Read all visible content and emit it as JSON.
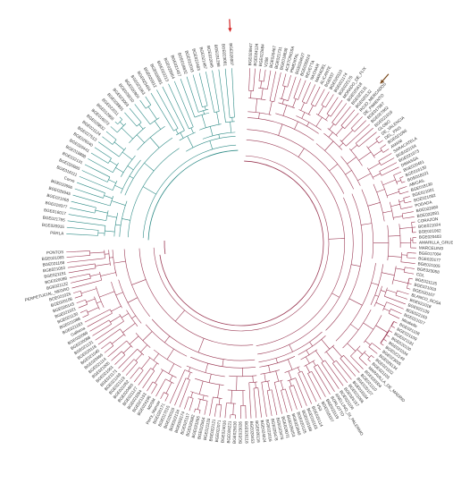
{
  "colors": {
    "clade_a": "#2e8b86",
    "clade_b": "#9b3a55",
    "arrow_red": "#d21f1f",
    "arrow_brown": "#7a4a1d"
  },
  "clades": [
    {
      "name": "",
      "color_key": "clade_a",
      "span_deg": [
        270,
        360
      ]
    },
    {
      "name": "",
      "color_key": "clade_b",
      "span_deg": [
        0,
        270
      ]
    }
  ],
  "highlighted_tips": [
    {
      "label": "Perla",
      "marker": "arrow_red"
    },
    {
      "label": "ROJO_MERCADOS",
      "marker": "arrow_brown"
    }
  ],
  "tips_clade_a": [
    "PERLA",
    "BGE020915",
    "BGE021755",
    "BGE016017",
    "BGE019377",
    "BGE021068",
    "BGE020945",
    "BGE019956",
    "Corvo",
    "BGE016111",
    "BGE020965",
    "BGE032131",
    "BGE018898",
    "BGE020441",
    "BGE026040",
    "BGE027513",
    "BGE021124",
    "BGE028832",
    "BGE016072",
    "BGE012866",
    "BGE022011",
    "BGE028891",
    "BGE023063",
    "BGE026010",
    "BGE020904",
    "BGE021063",
    "BGE025454",
    "BGE020912",
    "BGE028981",
    "BGE010213",
    "BGE028964",
    "BGE021467",
    "BGE018832",
    "BGE022033",
    "BGE022483",
    "BGE021487",
    "BGE022045",
    "BGE031298",
    "BGE023081",
    "BGE026007"
  ],
  "tips_clade_b": [
    "BGE028947",
    "BGE024124",
    "BGE022684",
    "V208",
    "BGE026467",
    "BGE021731",
    "BGE018838",
    "ACETONOSA",
    "PIMENTAL",
    "BGE034627",
    "BGE035624",
    "REVETTA",
    "NACHAR",
    "MARADEL",
    "ALICANTE",
    "BGE037",
    "BGE020110",
    "BGE021174",
    "BGE022175",
    "MORADO_DE_FLIX",
    "BGE020418",
    "BGE023131",
    "BGE020132",
    "ROJO_MERCADOS",
    "DE_PIMIENTO",
    "BGE017967",
    "BGE027862",
    "BGE021016",
    "GLOBO",
    "DE_VALENCIA",
    "DEL_PAIS",
    "BGE021066",
    "AMANI",
    "SARACATELA",
    "BGE020154",
    "BGE021073",
    "DIMASSA",
    "BGE020461",
    "BGE016130",
    "BGE018101",
    "ABIGAIL",
    "BGE018130",
    "BGE021001",
    "BGE021082",
    "PODADA",
    "BGE022080",
    "BGE022081",
    "CORAZON",
    "BGE021024",
    "BGE021062",
    "BGE020403",
    "AMARILLA_GRUESA",
    "MARCELINO",
    "BGE017004",
    "BGE020177",
    "BGE021005",
    "BGE023058",
    "CDL",
    "BGE021125",
    "BGE021003",
    "BGE020167",
    "BLANCO_ROSA",
    "BGE021018",
    "BGE022139",
    "BGE022169",
    "BGE021027",
    "Mirabelle",
    "BGE021108",
    "BGE021109",
    "BGE021181",
    "BGE020100",
    "BGE021034",
    "BGE022149",
    "BGE023005",
    "BGE026134",
    "BGE021102",
    "BGE021103",
    "MARAVILLA_DE_MADRID",
    "BGE020004",
    "BGE021110",
    "BGE020107",
    "BGE018184",
    "BGE021066",
    "BGE026157",
    "BGE021104",
    "ANELLINO_DI_PALERMO",
    "BORLOTTO",
    "BGE023119",
    "BGE018107",
    "V53",
    "BGE020114",
    "BGE016163",
    "BGE016188",
    "BGE020125",
    "BGE023040",
    "BGE026053",
    "BGE020071",
    "BGE023476",
    "BGE026478",
    "BGE022016",
    "BGE024024",
    "BGE026116",
    "BGE020453",
    "BGE026118",
    "BGE023026",
    "BGE025630",
    "BGE026221",
    "BGE024016",
    "BGE022071",
    "BGE022121",
    "BGE021133",
    "BGE022564",
    "BGE023265",
    "BGE020082",
    "BGE025117",
    "BGE028174",
    "BGE022134",
    "BGE020115",
    "BGE027015",
    "BGE020171",
    "Perry_Marrow",
    "MDSM",
    "BGE024196",
    "BGE021153",
    "BGE021054",
    "BGE021127",
    "BGE020460",
    "BGE021052",
    "BGE021119",
    "BGE021169",
    "BGE021171",
    "BGE021061",
    "BGE021005",
    "BGE021114",
    "BGE020466",
    "BGE021045",
    "BGE020118",
    "BGE021131",
    "BGE020068",
    "BGE020069",
    "Galbena",
    "BGE021163",
    "BGE021088",
    "BGE021130",
    "BGE021021",
    "BGE020143",
    "BGE020106",
    "BGE021025",
    "PERPETUCIAL_NEGRO",
    "BGE021122",
    "BGE020098",
    "BGE021151",
    "BGE021053",
    "BGE021168",
    "BGE021083",
    "PONTOS"
  ]
}
